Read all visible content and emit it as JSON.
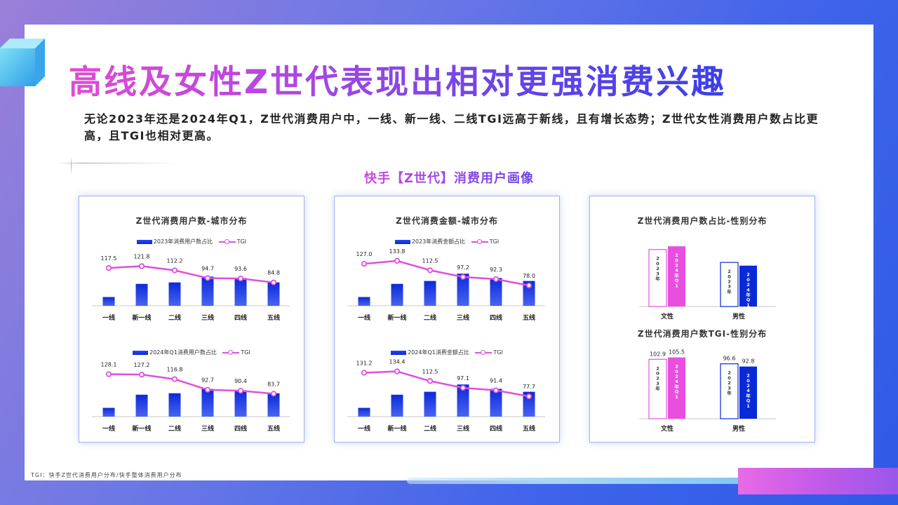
{
  "title": "高线及女性Z世代表现出相对更强消费兴趣",
  "description": "无论2023年还是2024年Q1，Z世代消费用户中，一线、新一线、二线TGI远高于新线，且有增长态势；Z世代女性消费用户数占比更高，且TGI也相对更高。",
  "subtitle": "快手【Z世代】消费用户画像",
  "footnote": "TGI：快手Z世代消费用户分布/快手整体消费用户分布",
  "colors": {
    "bar": "#0a2ad8",
    "line": "#e04fe0",
    "female": "#e84fe0",
    "male": "#0a2ad8"
  },
  "panels": {
    "p1": {
      "title": "Z世代消费用户数-城市分布"
    },
    "p2": {
      "title": "Z世代消费金额-城市分布"
    },
    "p3": {
      "title_top": "Z世代消费用户数占比-性别分布",
      "title_bottom": "Z世代消费用户数TGI-性别分布"
    }
  },
  "chart_data": [
    {
      "id": "users_2023",
      "type": "bar+line",
      "categories": [
        "一线",
        "新一线",
        "二线",
        "三线",
        "四线",
        "五线"
      ],
      "series": [
        {
          "name": "2023年消费用户数占比",
          "type": "bar",
          "values": [
            3,
            7.5,
            8,
            10,
            9.5,
            8
          ]
        },
        {
          "name": "TGI",
          "type": "line",
          "values": [
            117.5,
            121.8,
            112.2,
            94.7,
            93.6,
            84.8
          ]
        }
      ]
    },
    {
      "id": "users_2024q1",
      "type": "bar+line",
      "categories": [
        "一线",
        "新一线",
        "二线",
        "三线",
        "四线",
        "五线"
      ],
      "series": [
        {
          "name": "2024年Q1消费用户数占比",
          "type": "bar",
          "values": [
            3,
            7.5,
            8,
            9.5,
            9,
            8
          ]
        },
        {
          "name": "TGI",
          "type": "line",
          "values": [
            128.1,
            127.2,
            116.8,
            92.7,
            90.4,
            83.7
          ]
        }
      ]
    },
    {
      "id": "amount_2023",
      "type": "bar+line",
      "categories": [
        "一线",
        "新一线",
        "二线",
        "三线",
        "四线",
        "五线"
      ],
      "series": [
        {
          "name": "2023年消费金额占比",
          "type": "bar",
          "values": [
            3,
            7.5,
            8.5,
            11,
            9.5,
            8.5
          ]
        },
        {
          "name": "TGI",
          "type": "line",
          "values": [
            127.0,
            133.8,
            112.5,
            97.2,
            92.3,
            78.0
          ]
        }
      ]
    },
    {
      "id": "amount_2024q1",
      "type": "bar+line",
      "categories": [
        "一线",
        "新一线",
        "二线",
        "三线",
        "四线",
        "五线"
      ],
      "series": [
        {
          "name": "2024年Q1消费金额占比",
          "type": "bar",
          "values": [
            3,
            7.5,
            8.5,
            11,
            9.5,
            8.5
          ]
        },
        {
          "name": "TGI",
          "type": "line",
          "values": [
            131.2,
            134.4,
            112.5,
            97.1,
            91.4,
            77.7
          ]
        }
      ]
    },
    {
      "id": "gender_share",
      "type": "bar",
      "categories": [
        "文性",
        "男性"
      ],
      "series": [
        {
          "name": "2023年",
          "values": [
            53,
            41
          ]
        },
        {
          "name": "2024年Q1",
          "values": [
            56,
            38
          ]
        }
      ]
    },
    {
      "id": "gender_tgi",
      "type": "bar",
      "categories": [
        "文性",
        "男性"
      ],
      "series": [
        {
          "name": "2023年",
          "values": [
            102.9,
            96.6
          ]
        },
        {
          "name": "2024年Q1",
          "values": [
            105.5,
            92.8
          ]
        }
      ]
    }
  ]
}
